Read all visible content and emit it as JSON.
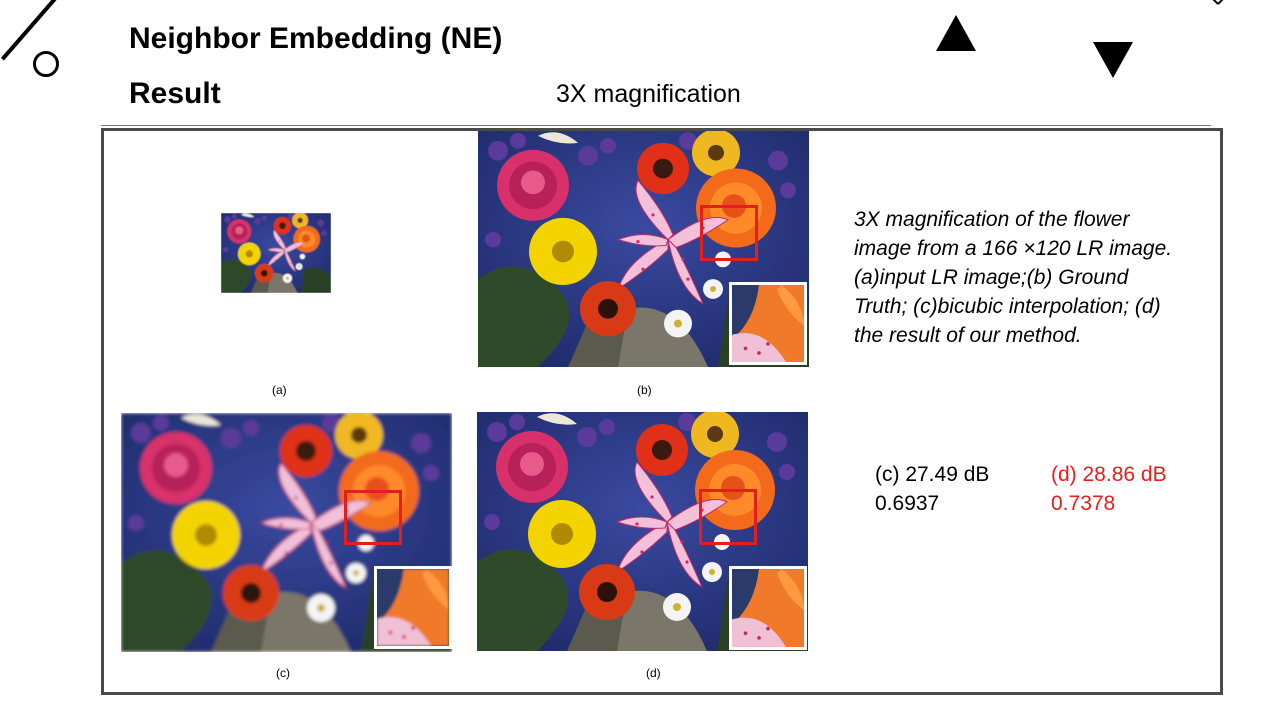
{
  "slide": {
    "title": "Neighbor Embedding (NE)",
    "subtitle": "Result",
    "magnification_heading": "3X magnification"
  },
  "figure": {
    "labels": {
      "a": "(a)",
      "b": "(b)",
      "c": "(c)",
      "d": "(d)"
    }
  },
  "caption": "3X magnification of the flower image from a 166 ×120 LR image. (a)input LR image;(b) Ground Truth; (c)bicubic interpolation; (d) the result of our method.",
  "metrics": {
    "c": {
      "psnr": "(c) 27.49 dB",
      "ssim": "0.6937"
    },
    "d": {
      "psnr": "(d) 28.86 dB",
      "ssim": "0.7378"
    }
  },
  "colors": {
    "frame": "#4a4a4a",
    "highlight_red": "#e81e1e",
    "background_blue": "#2c3a86"
  },
  "icons": [
    "deco-line-icon",
    "deco-circle-icon",
    "close-icon",
    "up-arrow-icon",
    "down-arrow-icon"
  ]
}
